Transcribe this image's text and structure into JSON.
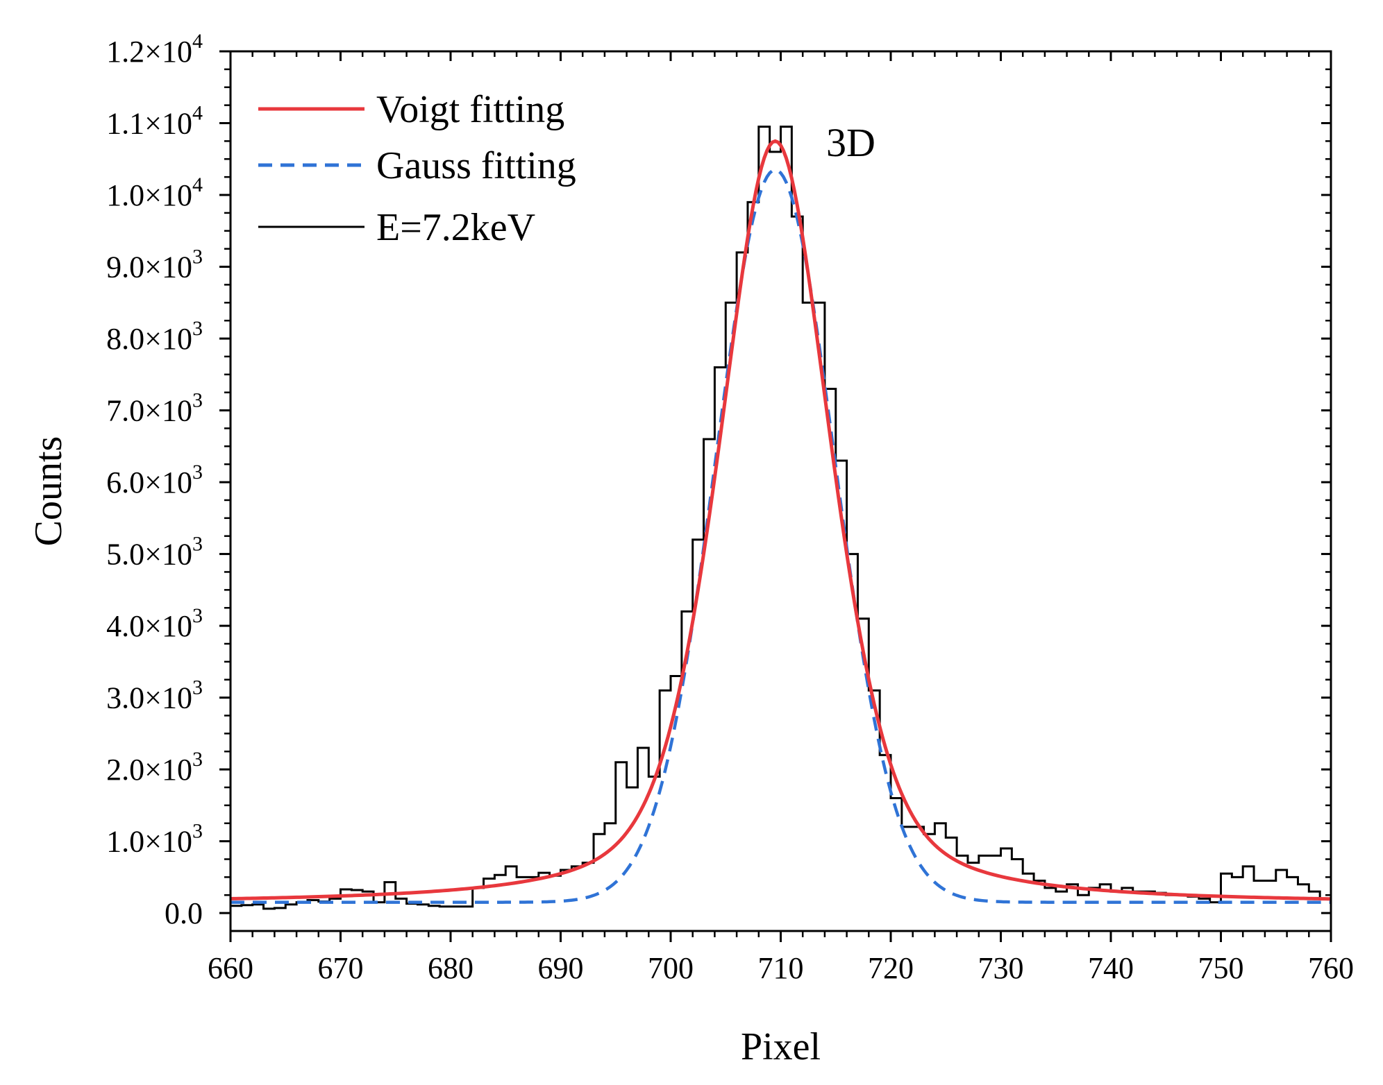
{
  "chart_data": {
    "type": "line",
    "title": "",
    "xlabel": "Pixel",
    "ylabel": "Counts",
    "xlim": [
      660,
      760
    ],
    "ylim": [
      -250,
      12000
    ],
    "x_ticks": [
      660,
      670,
      680,
      690,
      700,
      710,
      720,
      730,
      740,
      750,
      760
    ],
    "y_ticks": [
      {
        "value": 0,
        "label": "0.0",
        "exp": ""
      },
      {
        "value": 1000,
        "label": "1.0×10",
        "exp": "3"
      },
      {
        "value": 2000,
        "label": "2.0×10",
        "exp": "3"
      },
      {
        "value": 3000,
        "label": "3.0×10",
        "exp": "3"
      },
      {
        "value": 4000,
        "label": "4.0×10",
        "exp": "3"
      },
      {
        "value": 5000,
        "label": "5.0×10",
        "exp": "3"
      },
      {
        "value": 6000,
        "label": "6.0×10",
        "exp": "3"
      },
      {
        "value": 7000,
        "label": "7.0×10",
        "exp": "3"
      },
      {
        "value": 8000,
        "label": "8.0×10",
        "exp": "3"
      },
      {
        "value": 9000,
        "label": "9.0×10",
        "exp": "3"
      },
      {
        "value": 10000,
        "label": "1.0×10",
        "exp": "4"
      },
      {
        "value": 11000,
        "label": "1.1×10",
        "exp": "4"
      },
      {
        "value": 12000,
        "label": "1.2×10",
        "exp": "4"
      }
    ],
    "annotation": "3D",
    "legend_position": "top-left",
    "series": [
      {
        "name": "Voigt fitting",
        "style": "solid",
        "color": "#e8383d",
        "model": "voigt",
        "center": 709.5,
        "peak": 10750,
        "baseline": 130,
        "x": [
          660,
          665,
          670,
          675,
          680,
          685,
          688,
          690,
          692,
          694,
          696,
          698,
          700,
          702,
          704,
          706,
          708,
          709.5,
          711,
          713,
          715,
          717,
          719,
          721,
          723,
          725,
          727,
          730,
          735,
          740,
          745,
          750,
          755,
          760
        ],
        "values": [
          230,
          260,
          290,
          320,
          380,
          470,
          580,
          700,
          900,
          1250,
          1750,
          2500,
          3550,
          4950,
          6650,
          8450,
          10000,
          10750,
          10400,
          9200,
          7500,
          5700,
          3950,
          2700,
          1800,
          1250,
          900,
          620,
          430,
          340,
          290,
          260,
          240,
          230
        ]
      },
      {
        "name": "Gauss fitting",
        "style": "dashed",
        "color": "#2f73d6",
        "model": "gauss",
        "center": 709.5,
        "peak": 10350,
        "baseline": 150,
        "x": [
          660,
          670,
          680,
          686,
          690,
          692,
          694,
          696,
          698,
          700,
          702,
          704,
          706,
          708,
          709.5,
          711,
          713,
          715,
          717,
          719,
          721,
          723,
          725,
          727,
          730,
          735,
          740,
          750,
          760
        ],
        "values": [
          150,
          150,
          150,
          170,
          260,
          400,
          700,
          1250,
          2150,
          3450,
          5050,
          6900,
          8600,
          9900,
          10350,
          10050,
          8950,
          7250,
          5350,
          3550,
          2100,
          1100,
          520,
          260,
          160,
          150,
          150,
          150,
          150
        ]
      },
      {
        "name": "E=7.2keV",
        "style": "step",
        "color": "#000000",
        "bin_edges": [
          660,
          661,
          662,
          663,
          664,
          665,
          666,
          667,
          668,
          669,
          670,
          671,
          672,
          673,
          674,
          675,
          676,
          677,
          678,
          679,
          680,
          681,
          682,
          683,
          684,
          685,
          686,
          687,
          688,
          689,
          690,
          691,
          692,
          693,
          694,
          695,
          696,
          697,
          698,
          699,
          700,
          701,
          702,
          703,
          704,
          705,
          706,
          707,
          708,
          709,
          710,
          711,
          712,
          713,
          714,
          715,
          716,
          717,
          718,
          719,
          720,
          721,
          722,
          723,
          724,
          725,
          726,
          727,
          728,
          729,
          730,
          731,
          732,
          733,
          734,
          735,
          736,
          737,
          738,
          739,
          740,
          741,
          742,
          743,
          744,
          745,
          746,
          747,
          748,
          749,
          750,
          751,
          752,
          753,
          754,
          755,
          756,
          757,
          758,
          759,
          760
        ],
        "values": [
          100,
          110,
          120,
          60,
          70,
          120,
          150,
          180,
          160,
          200,
          330,
          320,
          300,
          150,
          430,
          200,
          130,
          120,
          100,
          90,
          90,
          90,
          350,
          480,
          530,
          650,
          500,
          500,
          560,
          520,
          600,
          650,
          700,
          1100,
          1250,
          2100,
          1750,
          2300,
          1900,
          3100,
          3300,
          4200,
          5200,
          6600,
          7600,
          8500,
          9200,
          9900,
          10950,
          10600,
          10950,
          9700,
          8500,
          8500,
          7300,
          6300,
          5000,
          4100,
          3100,
          2200,
          1600,
          1200,
          1200,
          1100,
          1250,
          1050,
          800,
          700,
          800,
          800,
          900,
          750,
          550,
          450,
          350,
          300,
          400,
          250,
          350,
          400,
          300,
          350,
          300,
          300,
          280,
          250,
          250,
          230,
          200,
          150,
          550,
          500,
          650,
          450,
          450,
          600,
          500,
          400,
          300,
          200,
          180
        ]
      }
    ]
  }
}
